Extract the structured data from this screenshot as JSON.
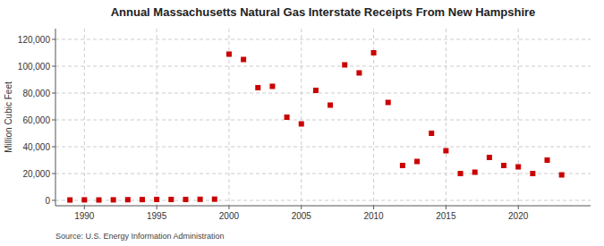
{
  "chart_data": {
    "type": "scatter",
    "title": "Annual Massachusetts Natural Gas Interstate Receipts From New Hampshire",
    "ylabel": "Million Cubic Feet",
    "source": "Source: U.S. Energy Information Administration",
    "color": "#cc0000",
    "marker": "square",
    "grid": true,
    "xlim": [
      1988.0,
      2025.0
    ],
    "ylim": [
      -4000,
      128000
    ],
    "xticks": [
      1990,
      1995,
      2000,
      2005,
      2010,
      2015,
      2020
    ],
    "yticks": [
      0,
      {
        "value": 20000,
        "label": "20,000"
      },
      {
        "value": 40000,
        "label": "40,000"
      },
      {
        "value": 60000,
        "label": "60,000"
      },
      {
        "value": 80000,
        "label": "80,000"
      },
      {
        "value": 100000,
        "label": "100,000"
      },
      {
        "value": 120000,
        "label": "120,000"
      }
    ],
    "x": [
      1989,
      1990,
      1991,
      1992,
      1993,
      1994,
      1995,
      1996,
      1997,
      1998,
      1999,
      2000,
      2001,
      2002,
      2003,
      2004,
      2005,
      2006,
      2007,
      2008,
      2009,
      2010,
      2011,
      2012,
      2013,
      2014,
      2015,
      2016,
      2017,
      2018,
      2019,
      2020,
      2021,
      2022,
      2023
    ],
    "values": [
      300,
      400,
      300,
      400,
      500,
      600,
      700,
      700,
      700,
      800,
      900,
      109000,
      105000,
      84000,
      85000,
      62000,
      57000,
      82000,
      71000,
      101000,
      95000,
      110000,
      73000,
      26000,
      29000,
      50000,
      37000,
      20000,
      21000,
      32000,
      26000,
      25000,
      20000,
      30000,
      19000
    ]
  }
}
